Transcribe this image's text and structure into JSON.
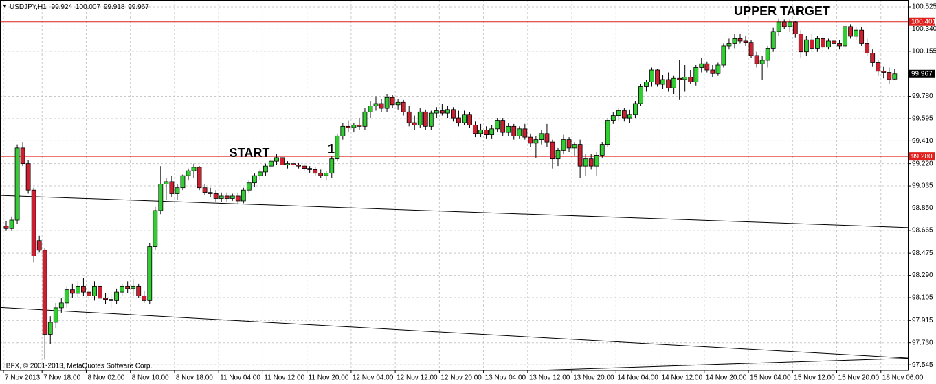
{
  "chart_data": {
    "type": "candlestick",
    "symbol": "USDJPY,H1",
    "copyright": "IBFX, © 2001-2013, MetaQuotes Software Corp.",
    "up_color": "#32cd32",
    "down_color": "#cc1f2f",
    "grid": true,
    "ylim": [
      97.5,
      100.565
    ],
    "yticks": [
      100.525,
      {
        "value": 100.34,
        "label": "100.340"
      },
      100.155,
      {
        "value": 99.78,
        "label": "99.780"
      },
      99.595,
      {
        "value": 99.41,
        "label": "99.410"
      },
      {
        "value": 99.22,
        "label": "99.220"
      },
      99.035,
      {
        "value": 98.85,
        "label": "98.850"
      },
      98.665,
      98.475,
      {
        "value": 98.29,
        "label": "98.290"
      },
      98.105,
      97.915,
      {
        "value": 97.73,
        "label": "97.730"
      },
      97.545
    ],
    "hlines": [
      100.401,
      {
        "value": 99.28,
        "label": "99.280"
      }
    ],
    "hline_color": "#e0201c",
    "annotations": [
      "UPPER TARGET",
      "START",
      "1"
    ],
    "trendlines": [
      {
        "x": [
          -1,
          163.5
        ],
        "y": [
          98.955,
          98.688
        ]
      },
      {
        "x": [
          -1,
          163.5
        ],
        "y": [
          98.023,
          97.602
        ]
      },
      {
        "x": [
          96,
          163.5
        ],
        "y": [
          97.5,
          97.6
        ]
      }
    ],
    "categories": [
      "7 Nov 2013",
      null,
      null,
      null,
      null,
      null,
      null,
      "7 Nov 18:00",
      null,
      null,
      null,
      null,
      null,
      null,
      null,
      "8 Nov 02:00",
      null,
      null,
      null,
      null,
      null,
      null,
      null,
      "8 Nov 10:00",
      null,
      null,
      null,
      null,
      null,
      null,
      null,
      "8 Nov 18:00",
      null,
      null,
      null,
      null,
      null,
      null,
      null,
      "11 Nov 04:00",
      null,
      null,
      null,
      null,
      null,
      null,
      null,
      "11 Nov 12:00",
      null,
      null,
      null,
      null,
      null,
      null,
      null,
      "11 Nov 20:00",
      null,
      null,
      null,
      null,
      null,
      null,
      null,
      "12 Nov 04:00",
      null,
      null,
      null,
      null,
      null,
      null,
      null,
      "12 Nov 12:00",
      null,
      null,
      null,
      null,
      null,
      null,
      null,
      "12 Nov 20:00",
      null,
      null,
      null,
      null,
      null,
      null,
      null,
      "13 Nov 04:00",
      null,
      null,
      null,
      null,
      null,
      null,
      null,
      "13 Nov 12:00",
      null,
      null,
      null,
      null,
      null,
      null,
      null,
      "13 Nov 20:00",
      null,
      null,
      null,
      null,
      null,
      null,
      null,
      "14 Nov 04:00",
      null,
      null,
      null,
      null,
      null,
      null,
      null,
      "14 Nov 12:00",
      null,
      null,
      null,
      null,
      null,
      null,
      null,
      "14 Nov 20:00",
      null,
      null,
      null,
      null,
      null,
      null,
      null,
      "15 Nov 04:00",
      null,
      null,
      null,
      null,
      null,
      null,
      null,
      "15 Nov 12:00",
      null,
      null,
      null,
      null,
      null,
      null,
      null,
      "15 Nov 20:00",
      null,
      null,
      null,
      null,
      null,
      null,
      null,
      "18 Nov 06:00",
      null,
      null
    ],
    "ohlc": [
      [
        98.7,
        98.74,
        98.66,
        98.68
      ],
      [
        98.68,
        98.78,
        98.66,
        98.75
      ],
      [
        98.75,
        99.38,
        98.72,
        99.35
      ],
      [
        99.35,
        99.4,
        99.2,
        99.22
      ],
      [
        99.22,
        99.25,
        98.97,
        99.0
      ],
      [
        99.0,
        99.02,
        98.4,
        98.45
      ],
      [
        98.58,
        98.62,
        98.48,
        98.5
      ],
      [
        98.5,
        98.52,
        97.59,
        97.8
      ],
      [
        97.8,
        97.95,
        97.72,
        97.9
      ],
      [
        97.9,
        98.06,
        97.85,
        98.02
      ],
      [
        98.02,
        98.1,
        97.98,
        98.06
      ],
      [
        98.06,
        98.2,
        98.02,
        98.17
      ],
      [
        98.17,
        98.22,
        98.1,
        98.14
      ],
      [
        98.14,
        98.24,
        98.1,
        98.2
      ],
      [
        98.2,
        98.27,
        98.12,
        98.15
      ],
      [
        98.15,
        98.18,
        98.08,
        98.12
      ],
      [
        98.12,
        98.24,
        98.08,
        98.2
      ],
      [
        98.2,
        98.22,
        98.06,
        98.1
      ],
      [
        98.1,
        98.14,
        98.05,
        98.09
      ],
      [
        98.09,
        98.13,
        98.02,
        98.08
      ],
      [
        98.08,
        98.18,
        98.05,
        98.15
      ],
      [
        98.15,
        98.22,
        98.12,
        98.2
      ],
      [
        98.2,
        98.24,
        98.14,
        98.18
      ],
      [
        98.18,
        98.26,
        98.12,
        98.2
      ],
      [
        98.2,
        98.22,
        98.1,
        98.12
      ],
      [
        98.12,
        98.16,
        98.06,
        98.08
      ],
      [
        98.08,
        98.56,
        98.05,
        98.53
      ],
      [
        98.53,
        98.86,
        98.5,
        98.83
      ],
      [
        98.83,
        99.2,
        98.8,
        99.05
      ],
      [
        99.05,
        99.1,
        98.92,
        99.07
      ],
      [
        99.07,
        99.12,
        98.94,
        98.97
      ],
      [
        98.97,
        99.05,
        98.92,
        99.02
      ],
      [
        99.02,
        99.13,
        99.0,
        99.12
      ],
      [
        99.12,
        99.18,
        99.08,
        99.16
      ],
      [
        99.16,
        99.22,
        99.1,
        99.19
      ],
      [
        99.19,
        99.2,
        99.0,
        99.02
      ],
      [
        99.02,
        99.05,
        98.96,
        98.98
      ],
      [
        98.98,
        99.02,
        98.94,
        98.97
      ],
      [
        98.97,
        99.0,
        98.9,
        98.93
      ],
      [
        98.93,
        98.98,
        98.9,
        98.95
      ],
      [
        98.95,
        98.98,
        98.9,
        98.93
      ],
      [
        98.93,
        98.97,
        98.91,
        98.95
      ],
      [
        98.95,
        98.98,
        98.88,
        98.91
      ],
      [
        98.91,
        99.02,
        98.89,
        99.0
      ],
      [
        99.0,
        99.08,
        98.98,
        99.06
      ],
      [
        99.06,
        99.14,
        99.03,
        99.12
      ],
      [
        99.12,
        99.17,
        99.08,
        99.15
      ],
      [
        99.15,
        99.22,
        99.12,
        99.2
      ],
      [
        99.2,
        99.27,
        99.17,
        99.24
      ],
      [
        99.24,
        99.3,
        99.21,
        99.27
      ],
      [
        99.27,
        99.29,
        99.19,
        99.21
      ],
      [
        99.21,
        99.24,
        99.18,
        99.22
      ],
      [
        99.22,
        99.24,
        99.19,
        99.21
      ],
      [
        99.21,
        99.23,
        99.18,
        99.2
      ],
      [
        99.2,
        99.22,
        99.16,
        99.18
      ],
      [
        99.18,
        99.2,
        99.14,
        99.17
      ],
      [
        99.17,
        99.19,
        99.12,
        99.14
      ],
      [
        99.14,
        99.17,
        99.1,
        99.12
      ],
      [
        99.12,
        99.16,
        99.08,
        99.14
      ],
      [
        99.14,
        99.28,
        99.1,
        99.26
      ],
      [
        99.26,
        99.47,
        99.24,
        99.45
      ],
      [
        99.45,
        99.56,
        99.42,
        99.53
      ],
      [
        99.53,
        99.58,
        99.48,
        99.52
      ],
      [
        99.52,
        99.56,
        99.48,
        99.54
      ],
      [
        99.54,
        99.6,
        99.5,
        99.53
      ],
      [
        99.53,
        99.68,
        99.5,
        99.65
      ],
      [
        99.65,
        99.74,
        99.6,
        99.7
      ],
      [
        99.7,
        99.78,
        99.66,
        99.72
      ],
      [
        99.72,
        99.76,
        99.65,
        99.68
      ],
      [
        99.68,
        99.8,
        99.65,
        99.77
      ],
      [
        99.77,
        99.79,
        99.68,
        99.71
      ],
      [
        99.71,
        99.76,
        99.67,
        99.73
      ],
      [
        99.73,
        99.75,
        99.62,
        99.65
      ],
      [
        99.65,
        99.7,
        99.53,
        99.56
      ],
      [
        99.56,
        99.62,
        99.5,
        99.54
      ],
      [
        99.54,
        99.68,
        99.52,
        99.65
      ],
      [
        99.65,
        99.67,
        99.5,
        99.53
      ],
      [
        99.53,
        99.66,
        99.5,
        99.64
      ],
      [
        99.64,
        99.69,
        99.6,
        99.66
      ],
      [
        99.66,
        99.72,
        99.62,
        99.64
      ],
      [
        99.64,
        99.7,
        99.6,
        99.67
      ],
      [
        99.67,
        99.69,
        99.57,
        99.6
      ],
      [
        99.6,
        99.66,
        99.53,
        99.56
      ],
      [
        99.56,
        99.66,
        99.54,
        99.63
      ],
      [
        99.63,
        99.65,
        99.52,
        99.54
      ],
      [
        99.54,
        99.57,
        99.44,
        99.47
      ],
      [
        99.47,
        99.55,
        99.44,
        99.5
      ],
      [
        99.5,
        99.53,
        99.43,
        99.46
      ],
      [
        99.46,
        99.54,
        99.43,
        99.51
      ],
      [
        99.51,
        99.6,
        99.48,
        99.58
      ],
      [
        99.58,
        99.6,
        99.45,
        99.48
      ],
      [
        99.48,
        99.56,
        99.45,
        99.53
      ],
      [
        99.53,
        99.55,
        99.42,
        99.45
      ],
      [
        99.45,
        99.53,
        99.43,
        99.51
      ],
      [
        99.51,
        99.55,
        99.42,
        99.44
      ],
      [
        99.44,
        99.47,
        99.36,
        99.39
      ],
      [
        99.39,
        99.45,
        99.27,
        99.42
      ],
      [
        99.42,
        99.5,
        99.38,
        99.47
      ],
      [
        99.47,
        99.55,
        99.36,
        99.4
      ],
      [
        99.4,
        99.42,
        99.18,
        99.26
      ],
      [
        99.26,
        99.35,
        99.2,
        99.33
      ],
      [
        99.33,
        99.46,
        99.3,
        99.42
      ],
      [
        99.42,
        99.44,
        99.32,
        99.35
      ],
      [
        99.35,
        99.4,
        99.28,
        99.38
      ],
      [
        99.38,
        99.42,
        99.1,
        99.2
      ],
      [
        99.2,
        99.3,
        99.12,
        99.26
      ],
      [
        99.26,
        99.3,
        99.17,
        99.2
      ],
      [
        99.2,
        99.32,
        99.12,
        99.29
      ],
      [
        99.29,
        99.4,
        99.27,
        99.38
      ],
      [
        99.38,
        99.6,
        99.36,
        99.58
      ],
      [
        99.58,
        99.65,
        99.55,
        99.62
      ],
      [
        99.62,
        99.68,
        99.58,
        99.66
      ],
      [
        99.66,
        99.68,
        99.57,
        99.6
      ],
      [
        99.6,
        99.67,
        99.56,
        99.63
      ],
      [
        99.63,
        99.74,
        99.6,
        99.72
      ],
      [
        99.72,
        99.88,
        99.7,
        99.86
      ],
      [
        99.86,
        99.92,
        99.82,
        99.9
      ],
      [
        99.9,
        100.02,
        99.86,
        100.0
      ],
      [
        100.0,
        100.01,
        99.86,
        99.88
      ],
      [
        99.88,
        99.96,
        99.84,
        99.92
      ],
      [
        99.92,
        99.98,
        99.82,
        99.85
      ],
      [
        99.85,
        99.95,
        99.8,
        99.93
      ],
      [
        99.93,
        100.08,
        99.75,
        99.92
      ],
      [
        99.92,
        100.04,
        99.82,
        99.94
      ],
      [
        99.94,
        100.0,
        99.88,
        99.9
      ],
      [
        99.9,
        100.04,
        99.87,
        100.02
      ],
      [
        100.02,
        100.1,
        99.98,
        100.05
      ],
      [
        100.05,
        100.07,
        99.98,
        100.0
      ],
      [
        100.0,
        100.04,
        99.94,
        99.97
      ],
      [
        99.97,
        100.06,
        99.95,
        100.04
      ],
      [
        100.04,
        100.22,
        100.02,
        100.2
      ],
      [
        100.2,
        100.26,
        100.17,
        100.22
      ],
      [
        100.22,
        100.3,
        100.18,
        100.26
      ],
      [
        100.26,
        100.3,
        100.22,
        100.24
      ],
      [
        100.24,
        100.28,
        100.2,
        100.23
      ],
      [
        100.23,
        100.25,
        100.1,
        100.12
      ],
      [
        100.12,
        100.15,
        100.02,
        100.05
      ],
      [
        100.05,
        100.12,
        99.92,
        100.08
      ],
      [
        100.08,
        100.2,
        100.02,
        100.18
      ],
      [
        100.18,
        100.35,
        100.15,
        100.32
      ],
      [
        100.32,
        100.43,
        100.28,
        100.4
      ],
      [
        100.4,
        100.42,
        100.34,
        100.36
      ],
      [
        100.36,
        100.42,
        100.32,
        100.4
      ],
      [
        100.4,
        100.41,
        100.27,
        100.3
      ],
      [
        100.3,
        100.33,
        100.1,
        100.15
      ],
      [
        100.15,
        100.28,
        100.12,
        100.25
      ],
      [
        100.25,
        100.3,
        100.15,
        100.18
      ],
      [
        100.18,
        100.28,
        100.15,
        100.26
      ],
      [
        100.26,
        100.28,
        100.16,
        100.19
      ],
      [
        100.19,
        100.26,
        100.17,
        100.24
      ],
      [
        100.24,
        100.26,
        100.2,
        100.22
      ],
      [
        100.22,
        100.25,
        100.17,
        100.2
      ],
      [
        100.2,
        100.38,
        100.18,
        100.36
      ],
      [
        100.36,
        100.38,
        100.26,
        100.28
      ],
      [
        100.28,
        100.36,
        100.25,
        100.33
      ],
      [
        100.33,
        100.36,
        100.2,
        100.22
      ],
      [
        100.22,
        100.26,
        100.12,
        100.14
      ],
      [
        100.14,
        100.17,
        100.03,
        100.06
      ],
      [
        100.06,
        100.08,
        99.95,
        99.99
      ],
      [
        99.99,
        100.03,
        99.93,
        99.98
      ],
      [
        99.98,
        100.02,
        99.88,
        99.92
      ],
      [
        99.924,
        100.007,
        99.918,
        99.967
      ]
    ]
  }
}
